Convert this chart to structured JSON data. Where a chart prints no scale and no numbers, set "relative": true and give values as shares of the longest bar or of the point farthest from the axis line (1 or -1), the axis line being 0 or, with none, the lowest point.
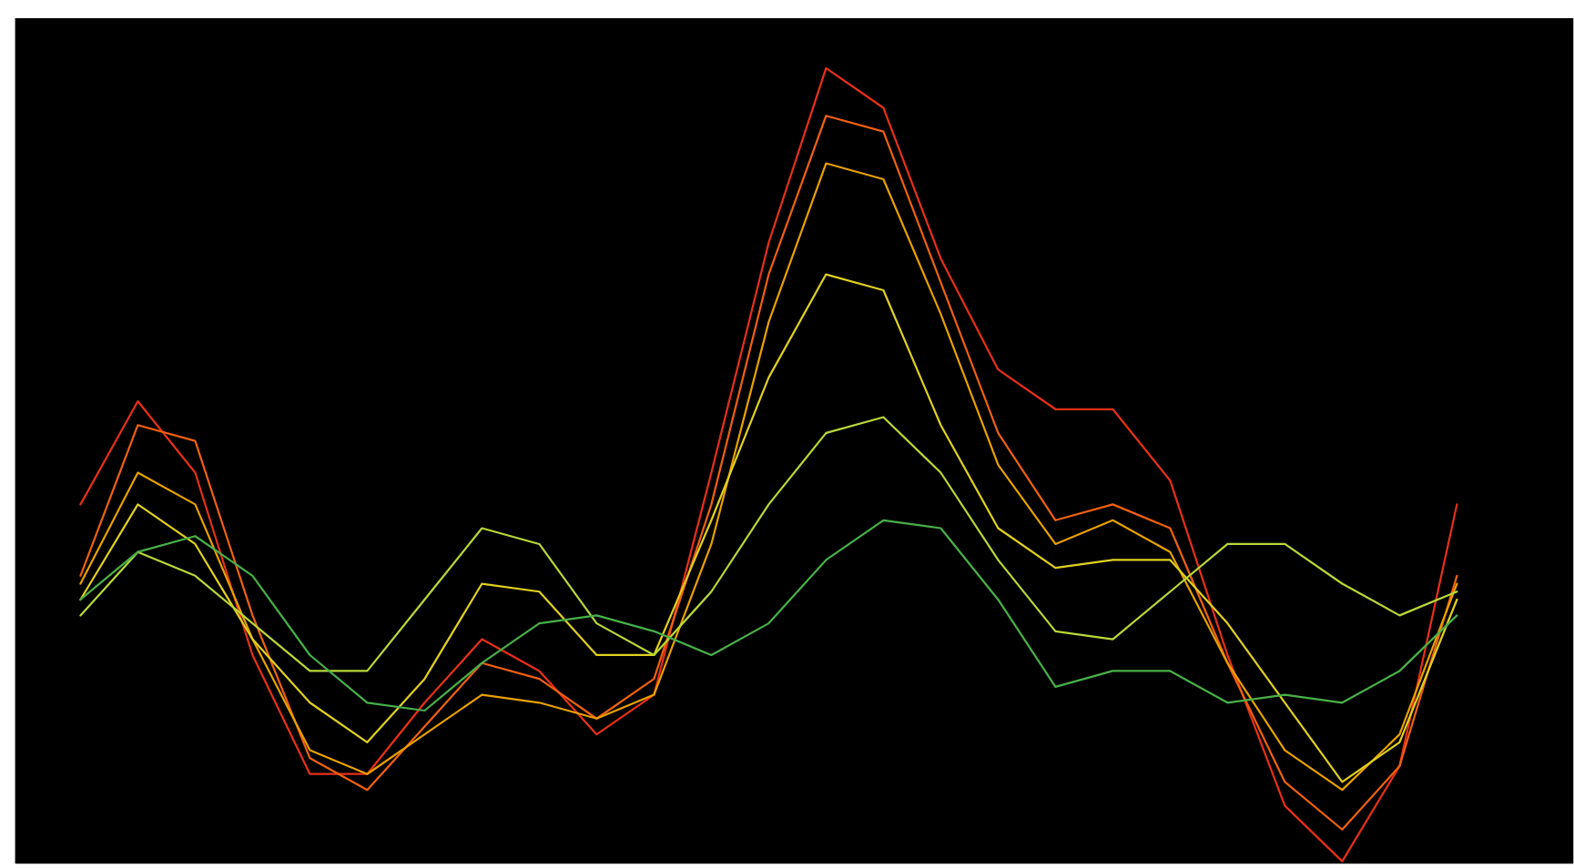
{
  "chart_data": {
    "type": "line",
    "relative": true,
    "categories": [
      null,
      null,
      null,
      null,
      null,
      null,
      null,
      null,
      null,
      null,
      null,
      null,
      null,
      null,
      null,
      null,
      null,
      null,
      null,
      null,
      null,
      null,
      null,
      null,
      null
    ],
    "series": [
      {
        "color": "#e83018",
        "values": [
          0.45,
          0.58,
          0.49,
          0.26,
          0.11,
          0.11,
          0.2,
          0.28,
          0.24,
          0.16,
          0.21,
          0.49,
          0.78,
          1.0,
          0.95,
          0.76,
          0.62,
          0.57,
          0.57,
          0.48,
          0.26,
          0.07,
          0.0,
          0.12,
          0.45
        ]
      },
      {
        "color": "#f06010",
        "values": [
          0.36,
          0.55,
          0.53,
          0.31,
          0.13,
          0.09,
          0.17,
          0.25,
          0.23,
          0.18,
          0.23,
          0.45,
          0.74,
          0.94,
          0.92,
          0.73,
          0.54,
          0.43,
          0.45,
          0.42,
          0.25,
          0.1,
          0.04,
          0.12,
          0.36
        ]
      },
      {
        "color": "#e8a000",
        "values": [
          0.35,
          0.49,
          0.45,
          0.28,
          0.14,
          0.11,
          0.16,
          0.21,
          0.2,
          0.18,
          0.21,
          0.4,
          0.68,
          0.88,
          0.86,
          0.69,
          0.5,
          0.4,
          0.43,
          0.39,
          0.25,
          0.14,
          0.09,
          0.16,
          0.35
        ]
      },
      {
        "color": "#e0d020",
        "values": [
          0.33,
          0.45,
          0.4,
          0.28,
          0.2,
          0.15,
          0.23,
          0.35,
          0.34,
          0.26,
          0.26,
          0.43,
          0.61,
          0.74,
          0.72,
          0.55,
          0.42,
          0.37,
          0.38,
          0.38,
          0.3,
          0.2,
          0.1,
          0.15,
          0.33
        ]
      },
      {
        "color": "#b8d838",
        "values": [
          0.31,
          0.39,
          0.36,
          0.3,
          0.24,
          0.24,
          0.33,
          0.42,
          0.4,
          0.3,
          0.26,
          0.34,
          0.45,
          0.54,
          0.56,
          0.49,
          0.38,
          0.29,
          0.28,
          0.34,
          0.4,
          0.4,
          0.35,
          0.31,
          0.34
        ]
      },
      {
        "color": "#48b048",
        "values": [
          0.33,
          0.39,
          0.41,
          0.36,
          0.26,
          0.2,
          0.19,
          0.25,
          0.3,
          0.31,
          0.29,
          0.26,
          0.3,
          0.38,
          0.43,
          0.42,
          0.33,
          0.22,
          0.24,
          0.24,
          0.2,
          0.21,
          0.2,
          0.24,
          0.31
        ]
      }
    ]
  }
}
